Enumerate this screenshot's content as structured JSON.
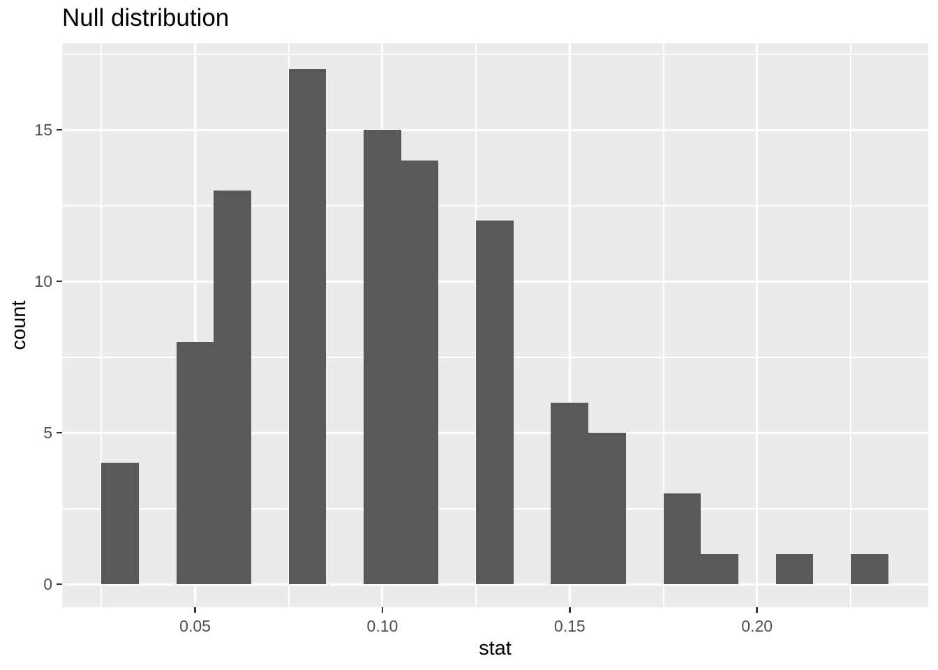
{
  "chart_data": {
    "type": "bar",
    "mark": "histogram",
    "title": "Null distribution",
    "xlabel": "stat",
    "ylabel": "count",
    "binwidth": 0.01,
    "bins": [
      {
        "x0": 0.025,
        "x1": 0.035,
        "count": 4
      },
      {
        "x0": 0.045,
        "x1": 0.055,
        "count": 8
      },
      {
        "x0": 0.055,
        "x1": 0.065,
        "count": 13
      },
      {
        "x0": 0.075,
        "x1": 0.085,
        "count": 17
      },
      {
        "x0": 0.095,
        "x1": 0.105,
        "count": 15
      },
      {
        "x0": 0.105,
        "x1": 0.115,
        "count": 14
      },
      {
        "x0": 0.125,
        "x1": 0.135,
        "count": 12
      },
      {
        "x0": 0.145,
        "x1": 0.155,
        "count": 6
      },
      {
        "x0": 0.155,
        "x1": 0.165,
        "count": 5
      },
      {
        "x0": 0.175,
        "x1": 0.185,
        "count": 3
      },
      {
        "x0": 0.185,
        "x1": 0.195,
        "count": 1
      },
      {
        "x0": 0.205,
        "x1": 0.215,
        "count": 1
      },
      {
        "x0": 0.225,
        "x1": 0.235,
        "count": 1
      }
    ],
    "total_count": 100,
    "xlim": [
      0.0145,
      0.2457
    ],
    "ylim": [
      -0.76,
      17.86
    ],
    "x_ticks": [
      {
        "value": 0.05,
        "label": "0.05"
      },
      {
        "value": 0.1,
        "label": "0.10"
      },
      {
        "value": 0.15,
        "label": "0.15"
      },
      {
        "value": 0.2,
        "label": "0.20"
      }
    ],
    "y_ticks": [
      {
        "value": 0,
        "label": "0"
      },
      {
        "value": 5,
        "label": "5"
      },
      {
        "value": 10,
        "label": "10"
      },
      {
        "value": 15,
        "label": "15"
      }
    ],
    "x_minor_gridlines": [
      0.025,
      0.075,
      0.125,
      0.175,
      0.225
    ],
    "y_minor_gridlines": [
      2.5,
      7.5,
      12.5,
      17.5
    ],
    "grid": "major-and-minor",
    "legend": "none",
    "colors": {
      "bar_fill": "#595959",
      "panel_background": "#EBEBEB",
      "gridline": "#FFFFFF",
      "axis_text": "#4D4D4D",
      "title_text": "#000000",
      "axis_title_text": "#000000",
      "tick_mark": "#333333",
      "figure_background": "#FFFFFF"
    }
  }
}
